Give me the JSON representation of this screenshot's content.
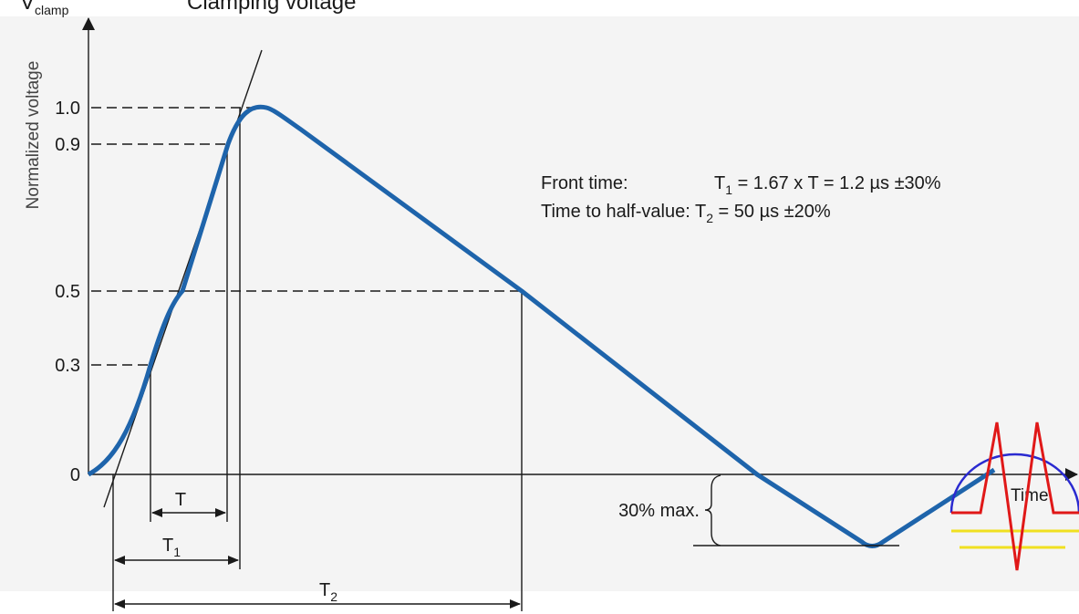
{
  "header": {
    "symbol": "V",
    "symbol_subscript": "clamp",
    "title": "Clamping voltage"
  },
  "axes": {
    "y_label": "Normalized voltage",
    "y_ticks": [
      "1.0",
      "0.9",
      "0.5",
      "0.3",
      "0"
    ],
    "x_label": "Time"
  },
  "definitions": {
    "front_time": {
      "label": "Front time:",
      "lhs": "T",
      "lhs_subscript": "1",
      "rhs": " = 1.67 x T = 1.2 µs ±30%"
    },
    "half_value": {
      "label": "Time to half-value: ",
      "lhs": "T",
      "lhs_subscript": "2",
      "rhs": " = 50 µs ±20%"
    }
  },
  "annotations": {
    "undershoot": "30% max.",
    "t": "T",
    "t1": {
      "text": "T",
      "subscript": "1"
    },
    "t2": {
      "text": "T",
      "subscript": "2"
    }
  }
}
